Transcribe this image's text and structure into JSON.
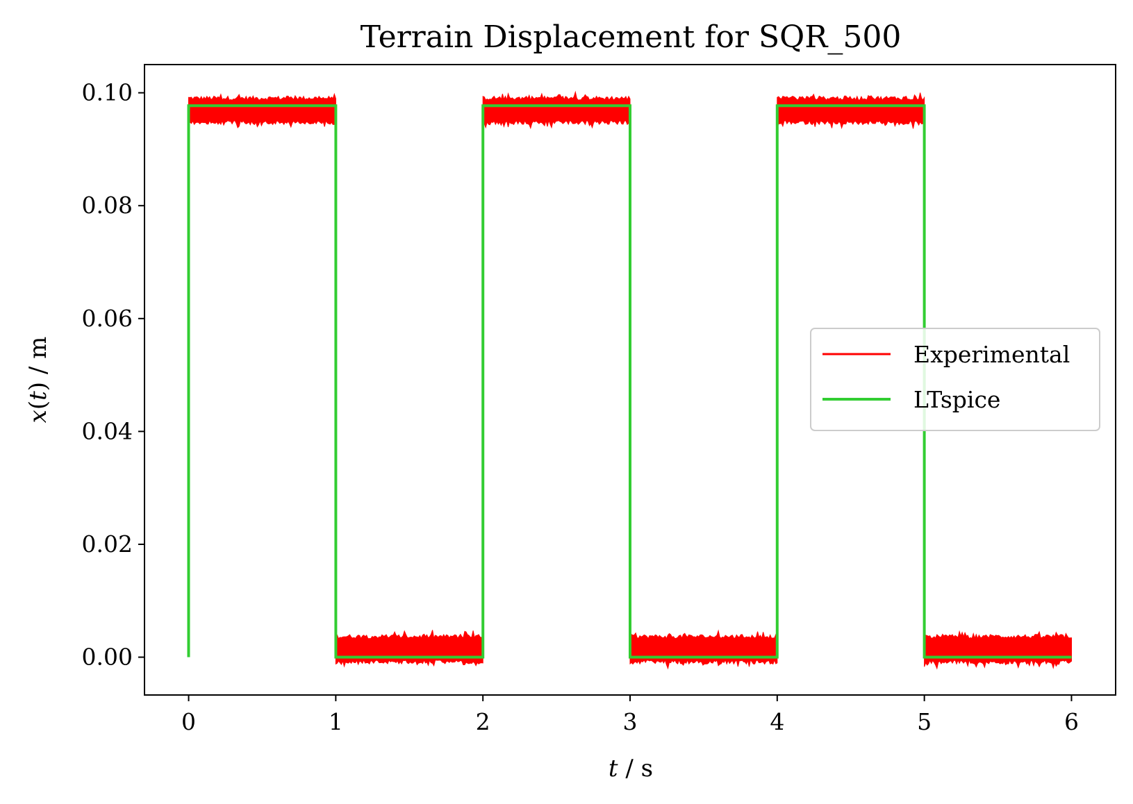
{
  "chart_data": {
    "type": "line",
    "title": "Terrain Displacement for SQR_500",
    "xlabel": {
      "var": "t",
      "unit": "s"
    },
    "ylabel": {
      "var": "x",
      "arg": "t",
      "unit": "m"
    },
    "xlim": [
      -0.3,
      6.3
    ],
    "ylim": [
      -0.0067,
      0.105
    ],
    "xticks": [
      0,
      1,
      2,
      3,
      4,
      5,
      6
    ],
    "xtick_labels": [
      "0",
      "1",
      "2",
      "3",
      "4",
      "5",
      "6"
    ],
    "yticks": [
      0.0,
      0.02,
      0.04,
      0.06,
      0.08,
      0.1
    ],
    "ytick_labels": [
      "0.00",
      "0.02",
      "0.04",
      "0.06",
      "0.08",
      "0.10"
    ],
    "grid": false,
    "legend_position": "center-right",
    "series": [
      {
        "name": "Experimental",
        "color": "#ff0000",
        "style": "noisy band",
        "segments": [
          {
            "x": [
              0.0,
              1.0
            ],
            "y_low": 0.0951,
            "y_high": 0.0987
          },
          {
            "x": [
              1.0,
              2.0
            ],
            "y_low": -0.0005,
            "y_high": 0.0033
          },
          {
            "x": [
              2.0,
              3.0
            ],
            "y_low": 0.0951,
            "y_high": 0.0987
          },
          {
            "x": [
              3.0,
              4.0
            ],
            "y_low": -0.0005,
            "y_high": 0.0033
          },
          {
            "x": [
              4.0,
              5.0
            ],
            "y_low": 0.0951,
            "y_high": 0.0987
          },
          {
            "x": [
              5.0,
              6.0
            ],
            "y_low": -0.0005,
            "y_high": 0.0033
          }
        ]
      },
      {
        "name": "LTspice",
        "color": "#32cd32",
        "x": [
          0.0,
          0.0,
          1.0,
          1.0,
          2.0,
          2.0,
          3.0,
          3.0,
          4.0,
          4.0,
          5.0,
          5.0,
          6.0
        ],
        "y": [
          0.0,
          0.0977,
          0.0977,
          0.0,
          0.0,
          0.0977,
          0.0977,
          0.0,
          0.0,
          0.0977,
          0.0977,
          0.0,
          0.0
        ]
      }
    ]
  }
}
